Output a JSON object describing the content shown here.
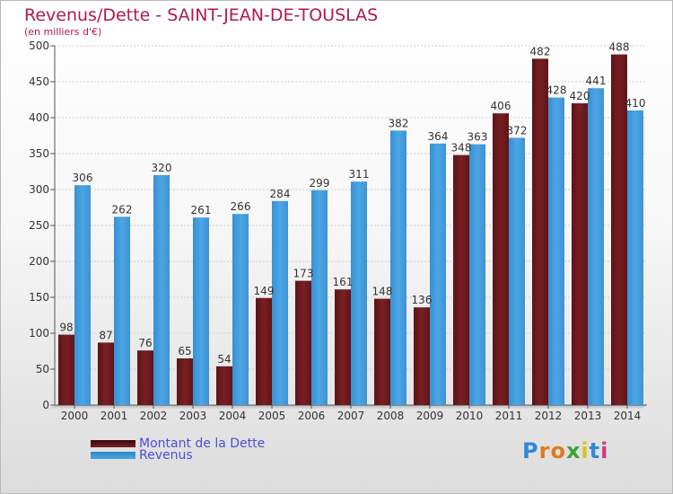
{
  "title": "Revenus/Dette - SAINT-JEAN-DE-TOUSLAS",
  "subtitle": "(en milliers d'€)",
  "logo": "Proxiti",
  "colors": {
    "dette": "#7a1f23",
    "revenus": "#4aa6e6",
    "title": "#b21a4a",
    "legend_text": "#4d4dd9"
  },
  "chart_data": {
    "type": "bar",
    "title": "Revenus/Dette - SAINT-JEAN-DE-TOUSLAS",
    "subtitle": "(en milliers d'€)",
    "categories": [
      "2000",
      "2001",
      "2002",
      "2003",
      "2004",
      "2005",
      "2006",
      "2007",
      "2008",
      "2009",
      "2010",
      "2011",
      "2012",
      "2013",
      "2014"
    ],
    "series": [
      {
        "name": "Montant de la Dette",
        "values": [
          98,
          87,
          76,
          65,
          54,
          149,
          173,
          161,
          148,
          136,
          348,
          406,
          482,
          420,
          488
        ]
      },
      {
        "name": "Revenus",
        "values": [
          306,
          262,
          320,
          261,
          266,
          284,
          299,
          311,
          382,
          364,
          363,
          372,
          428,
          441,
          410
        ]
      }
    ],
    "ylim": [
      0,
      500
    ],
    "yticks": [
      0,
      50,
      100,
      150,
      200,
      250,
      300,
      350,
      400,
      450,
      500
    ],
    "grid": true,
    "legend_position": "bottom-left"
  }
}
